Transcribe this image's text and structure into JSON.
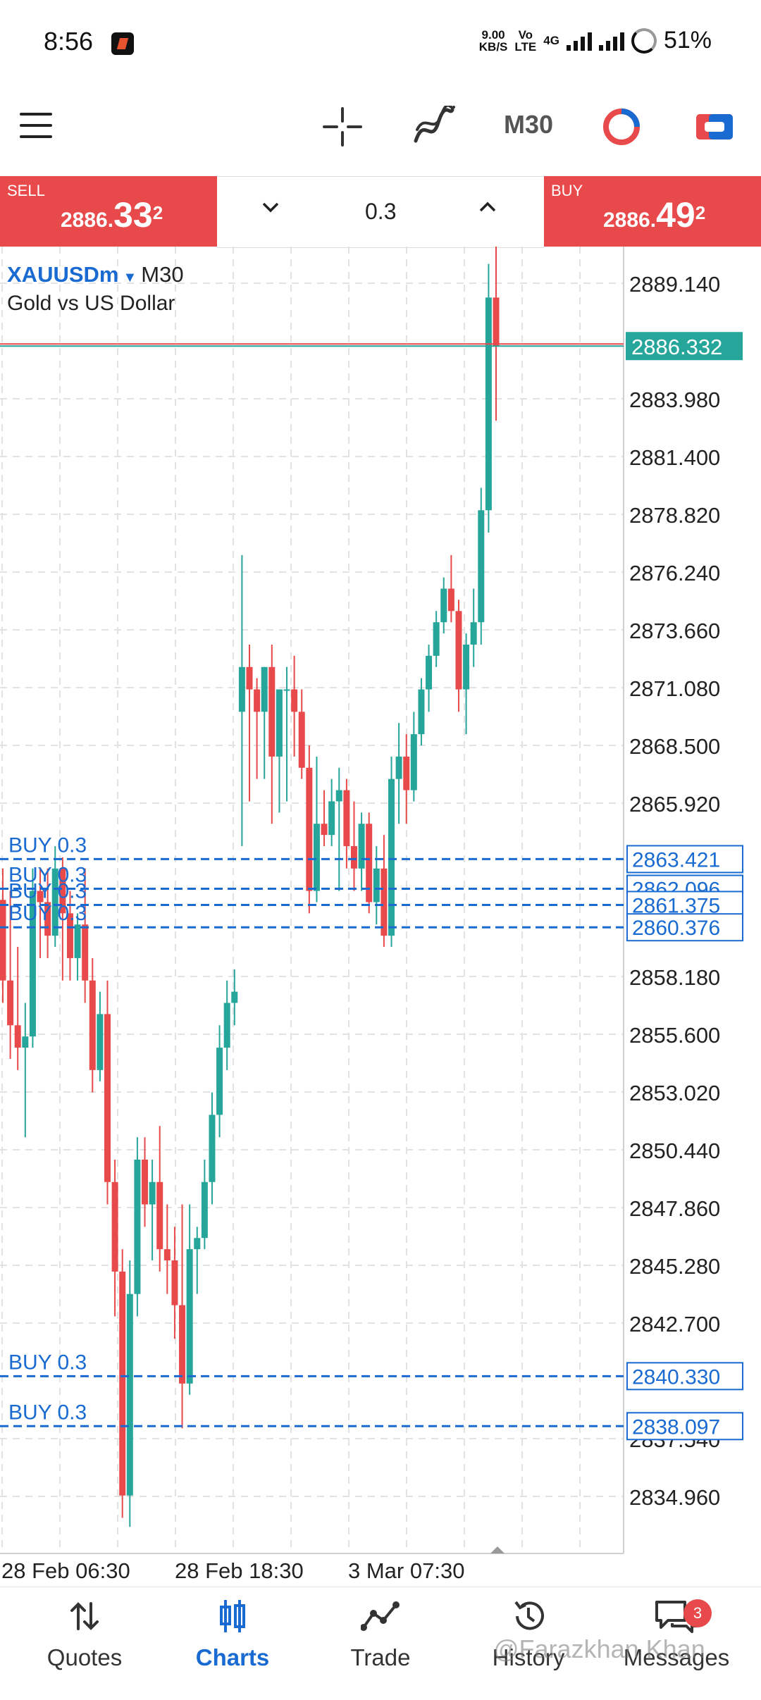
{
  "status_bar": {
    "time": "8:56",
    "net_speed_top": "9.00",
    "net_speed_unit": "KB/S",
    "volte_top": "Vo",
    "volte_bottom": "LTE",
    "network": "4G",
    "battery": "51%"
  },
  "toolbar": {
    "menu_icon": "menu-icon",
    "crosshair_icon": "crosshair-icon",
    "indicators_icon": "indicators-icon",
    "timeframe": "M30",
    "objects_icon": "objects-icon",
    "trade_icon": "trade-icon"
  },
  "one_click": {
    "sell_label": "SELL",
    "sell_price_prefix": "2886.",
    "sell_price_big": "33",
    "sell_price_sup": "2",
    "lot": "0.3",
    "buy_label": "BUY",
    "buy_price_prefix": "2886.",
    "buy_price_big": "49",
    "buy_price_sup": "2"
  },
  "symbol": {
    "name": "XAUUSDm",
    "timeframe": "M30",
    "description": "Gold vs US Dollar"
  },
  "chart_data": {
    "type": "candlestick",
    "ylim": [
      2833.6,
      2891.5
    ],
    "y_ticks": [
      2889.14,
      2883.98,
      2881.4,
      2878.82,
      2876.24,
      2873.66,
      2871.08,
      2868.5,
      2865.92,
      2858.18,
      2855.6,
      2853.02,
      2850.44,
      2847.86,
      2845.28,
      2842.7,
      2837.54,
      2834.96
    ],
    "y_tick_labels": [
      "2889.140",
      "2883.980",
      "2881.400",
      "2878.820",
      "2876.240",
      "2873.660",
      "2871.080",
      "2868.500",
      "2865.920",
      "2858.180",
      "2855.600",
      "2853.020",
      "2850.440",
      "2847.860",
      "2845.280",
      "2842.700",
      "2837.540",
      "2834.960"
    ],
    "x_labels": [
      "28 Feb 06:30",
      "28 Feb 18:30",
      "3 Mar 07:30"
    ],
    "current_price": 2886.332,
    "current_price_label": "2886.332",
    "colors": {
      "bull": "#26a69a",
      "bear": "#e8494a",
      "order": "#1a6bd1"
    },
    "orders": [
      {
        "label": "BUY 0.3",
        "price": 2863.421,
        "price_label": "2863.421"
      },
      {
        "label": "BUY 0.3",
        "price": 2862.096,
        "price_label": "2862.096"
      },
      {
        "label": "BUY 0.3",
        "price": 2861.375,
        "price_label": "2861.375"
      },
      {
        "label": "BUY 0.3",
        "price": 2860.376,
        "price_label": "2860.376"
      },
      {
        "label": "BUY 0.3",
        "price": 2840.33,
        "price_label": "2840.330"
      },
      {
        "label": "BUY 0.3",
        "price": 2838.097,
        "price_label": "2838.097"
      }
    ],
    "candles": [
      [
        2861.6,
        2863.0,
        2857.0,
        2858.0
      ],
      [
        2858.0,
        2862.0,
        2854.5,
        2856.0
      ],
      [
        2856.0,
        2859.5,
        2854.0,
        2855.0
      ],
      [
        2855.0,
        2857.0,
        2851.0,
        2855.5
      ],
      [
        2855.5,
        2863.0,
        2855.0,
        2862.0
      ],
      [
        2862.0,
        2863.0,
        2859.0,
        2861.5
      ],
      [
        2861.5,
        2863.0,
        2859.0,
        2860.0
      ],
      [
        2860.0,
        2864.0,
        2859.5,
        2863.0
      ],
      [
        2863.0,
        2863.5,
        2858.0,
        2861.0
      ],
      [
        2861.0,
        2862.0,
        2858.0,
        2859.0
      ],
      [
        2859.0,
        2861.0,
        2858.0,
        2860.5
      ],
      [
        2860.5,
        2863.0,
        2857.0,
        2858.0
      ],
      [
        2858.0,
        2859.0,
        2853.0,
        2854.0
      ],
      [
        2854.0,
        2857.5,
        2853.5,
        2856.5
      ],
      [
        2856.5,
        2858.0,
        2848.0,
        2849.0
      ],
      [
        2849.0,
        2850.0,
        2843.0,
        2845.0
      ],
      [
        2845.0,
        2846.0,
        2834.0,
        2835.0
      ],
      [
        2835.0,
        2845.5,
        2833.6,
        2844.0
      ],
      [
        2844.0,
        2851.0,
        2843.0,
        2850.0
      ],
      [
        2850.0,
        2851.0,
        2847.0,
        2848.0
      ],
      [
        2848.0,
        2850.0,
        2845.5,
        2849.0
      ],
      [
        2849.0,
        2851.5,
        2845.0,
        2846.0
      ],
      [
        2846.0,
        2848.0,
        2844.0,
        2845.5
      ],
      [
        2845.5,
        2847.0,
        2842.0,
        2843.5
      ],
      [
        2843.5,
        2848.0,
        2838.0,
        2840.0
      ],
      [
        2840.0,
        2848.0,
        2839.5,
        2846.0
      ],
      [
        2846.0,
        2847.0,
        2844.0,
        2846.5
      ],
      [
        2846.5,
        2850.0,
        2846.0,
        2849.0
      ],
      [
        2849.0,
        2853.0,
        2848.0,
        2852.0
      ],
      [
        2852.0,
        2856.0,
        2851.0,
        2855.0
      ],
      [
        2855.0,
        2858.0,
        2854.0,
        2857.0
      ],
      [
        2857.0,
        2858.5,
        2856.0,
        2857.5
      ],
      [
        2870.0,
        2877.0,
        2864.0,
        2872.0
      ],
      [
        2872.0,
        2873.0,
        2866.0,
        2871.0
      ],
      [
        2871.0,
        2871.5,
        2867.0,
        2870.0
      ],
      [
        2870.0,
        2872.0,
        2867.0,
        2872.0
      ],
      [
        2872.0,
        2873.0,
        2865.0,
        2868.0
      ],
      [
        2868.0,
        2871.0,
        2865.5,
        2871.0
      ],
      [
        2871.0,
        2872.0,
        2866.0,
        2871.0
      ],
      [
        2871.0,
        2872.5,
        2868.0,
        2870.0
      ],
      [
        2870.0,
        2871.0,
        2867.0,
        2867.5
      ],
      [
        2867.5,
        2868.5,
        2861.0,
        2862.0
      ],
      [
        2862.0,
        2868.0,
        2861.5,
        2865.0
      ],
      [
        2865.0,
        2866.5,
        2864.0,
        2864.5
      ],
      [
        2864.5,
        2867.0,
        2864.0,
        2866.0
      ],
      [
        2866.0,
        2867.5,
        2862.0,
        2866.5
      ],
      [
        2866.5,
        2867.0,
        2863.0,
        2864.0
      ],
      [
        2864.0,
        2866.0,
        2862.0,
        2863.0
      ],
      [
        2863.0,
        2865.5,
        2862.0,
        2865.0
      ],
      [
        2865.0,
        2865.5,
        2861.0,
        2861.5
      ],
      [
        2861.5,
        2864.0,
        2860.5,
        2863.0
      ],
      [
        2863.0,
        2864.5,
        2859.5,
        2860.0
      ],
      [
        2860.0,
        2868.0,
        2859.5,
        2867.0
      ],
      [
        2867.0,
        2869.5,
        2865.0,
        2868.0
      ],
      [
        2868.0,
        2869.0,
        2865.0,
        2866.5
      ],
      [
        2866.5,
        2870.0,
        2866.0,
        2869.0
      ],
      [
        2869.0,
        2871.5,
        2868.5,
        2871.0
      ],
      [
        2871.0,
        2873.0,
        2870.0,
        2872.5
      ],
      [
        2872.5,
        2874.5,
        2872.0,
        2874.0
      ],
      [
        2874.0,
        2876.0,
        2873.5,
        2875.5
      ],
      [
        2875.5,
        2877.0,
        2874.0,
        2874.5
      ],
      [
        2874.5,
        2875.0,
        2870.0,
        2871.0
      ],
      [
        2871.0,
        2873.5,
        2869.0,
        2873.0
      ],
      [
        2873.0,
        2875.5,
        2872.0,
        2874.0
      ],
      [
        2874.0,
        2880.0,
        2873.0,
        2879.0
      ],
      [
        2879.0,
        2890.0,
        2878.0,
        2888.5
      ],
      [
        2888.5,
        2891.5,
        2883.0,
        2886.332
      ]
    ]
  },
  "bottom_nav": {
    "quotes": "Quotes",
    "charts": "Charts",
    "trade": "Trade",
    "history": "History",
    "messages": "Messages",
    "messages_badge": "3"
  },
  "watermark": "@Farazkhan Khan"
}
